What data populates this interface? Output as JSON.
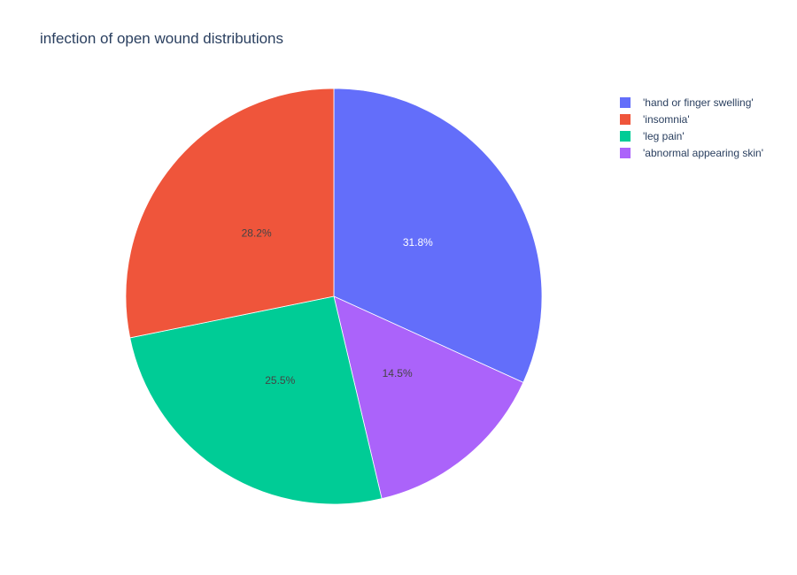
{
  "chart_data": {
    "type": "pie",
    "title": "infection of open wound distributions",
    "labels": [
      "'hand or finger swelling'",
      "'insomnia'",
      "'leg pain'",
      "'abnormal appearing skin'"
    ],
    "values": [
      31.8,
      28.2,
      25.5,
      14.5
    ],
    "percent_labels": [
      "31.8%",
      "28.2%",
      "25.5%",
      "14.5%"
    ],
    "slice_order_clockwise_from_top": [
      "'hand or finger swelling'",
      "'abnormal appearing skin'",
      "'leg pain'",
      "'insomnia'"
    ],
    "colors": [
      "#636efa",
      "#ef553b",
      "#00cc96",
      "#ab63fa"
    ],
    "label_text_colors": [
      "#ffffff",
      "#444444",
      "#444444",
      "#444444"
    ],
    "legend_placement": "top-right"
  }
}
